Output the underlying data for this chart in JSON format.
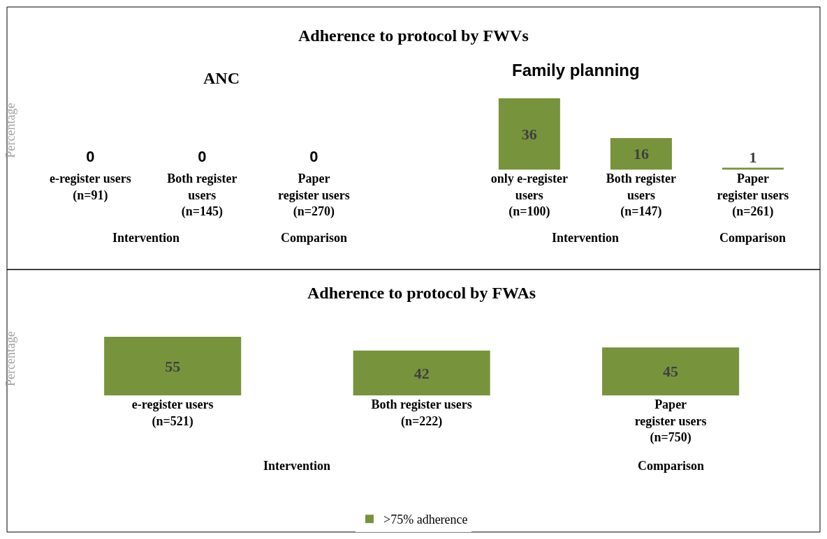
{
  "chart_data": [
    {
      "type": "other",
      "title": "ANC",
      "subtitle": "Adherence to protocol by FWVs",
      "ylabel": "Percentage",
      "categories": [
        "e-register users\n(n=91)",
        "Both register\nusers\n(n=145)",
        "Paper\nregister users\n(n=270)"
      ],
      "values": [
        0,
        0,
        0
      ],
      "value_labels": [
        "0",
        "0",
        "0"
      ],
      "color": "#77933c",
      "legend": false,
      "annotations": [
        "Intervention",
        "Comparison"
      ]
    },
    {
      "type": "bar",
      "title": "Family planning",
      "categories": [
        "only e-register\nusers\n(n=100)",
        "Both register\nusers\n(n=147)",
        "Paper\nregister users\n(n=261)"
      ],
      "values": [
        36,
        16,
        1
      ],
      "color": "#77933c",
      "data_labels": true,
      "tick_labels": "x",
      "legend": false,
      "annotations": [
        "Intervention",
        "Comparison"
      ]
    },
    {
      "type": "bar",
      "title": "Adherence to protocol by FWAs",
      "ylabel": "Percentage",
      "categories": [
        "e-register users\n(n=521)",
        "Both register users\n(n=222)",
        "Paper\nregister users\n(n=750)"
      ],
      "series": [
        {
          "name": ">75% adherence",
          "color": "#77933c",
          "values": [
            55,
            42,
            45
          ]
        }
      ],
      "data_labels": true,
      "tick_labels": "x",
      "legend": "bottom",
      "annotations": [
        "Intervention",
        "Comparison"
      ]
    }
  ]
}
